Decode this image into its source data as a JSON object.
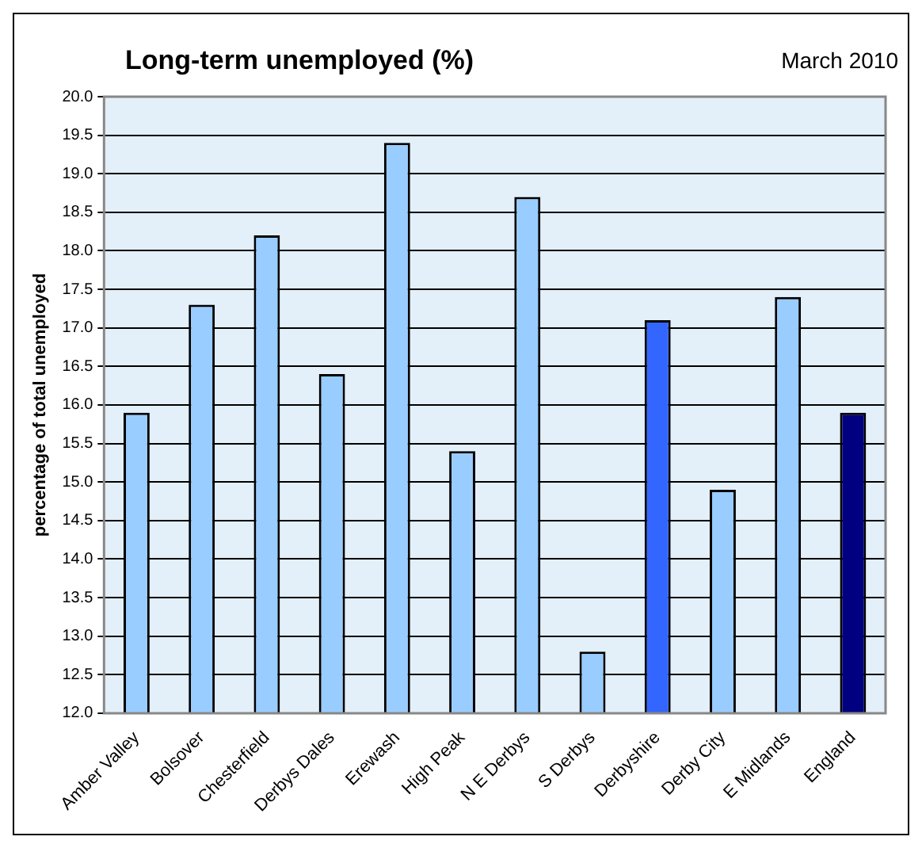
{
  "chart_data": {
    "type": "bar",
    "title": "Long-term unemployed (%)",
    "subtitle": "March 2010",
    "ylabel": "percentage of total unemployed",
    "categories": [
      "Amber Valley",
      "Bolsover",
      "Chesterfield",
      "Derbys Dales",
      "Erewash",
      "High Peak",
      "N E Derbys",
      "S Derbys",
      "Derbyshire",
      "Derby City",
      "E Midlands",
      "England"
    ],
    "values": [
      15.9,
      17.3,
      18.2,
      16.4,
      19.4,
      15.4,
      18.7,
      12.8,
      17.1,
      14.9,
      17.4,
      15.9
    ],
    "colors": [
      "#99ccff",
      "#99ccff",
      "#99ccff",
      "#99ccff",
      "#99ccff",
      "#99ccff",
      "#99ccff",
      "#99ccff",
      "#3366ff",
      "#99ccff",
      "#99ccff",
      "#000080"
    ],
    "ylim": [
      12,
      20
    ],
    "yticks": [
      {
        "value": 12,
        "label": "12.0"
      },
      {
        "value": 12.5,
        "label": "12.5"
      },
      {
        "value": 13,
        "label": "13.0"
      },
      {
        "value": 13.5,
        "label": "13.5"
      },
      {
        "value": 14,
        "label": "14.0"
      },
      {
        "value": 14.5,
        "label": "14.5"
      },
      {
        "value": 15,
        "label": "15.0"
      },
      {
        "value": 15.5,
        "label": "15.5"
      },
      {
        "value": 16,
        "label": "16.0"
      },
      {
        "value": 16.5,
        "label": "16.5"
      },
      {
        "value": 17,
        "label": "17.0"
      },
      {
        "value": 17.5,
        "label": "17.5"
      },
      {
        "value": 18,
        "label": "18.0"
      },
      {
        "value": 18.5,
        "label": "18.5"
      },
      {
        "value": 19,
        "label": "19.0"
      },
      {
        "value": 19.5,
        "label": "19.5"
      },
      {
        "value": 20,
        "label": "20.0"
      }
    ],
    "grid": "y",
    "legend": false
  }
}
